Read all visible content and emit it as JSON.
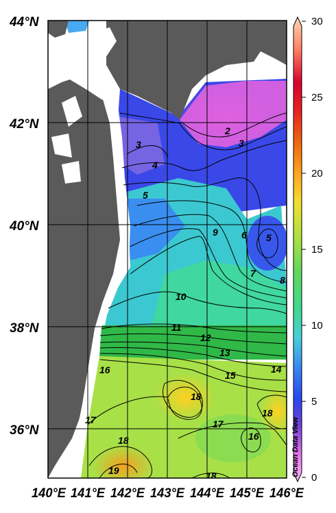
{
  "axes": {
    "lat_labels": [
      "44°N",
      "42°N",
      "40°N",
      "38°N",
      "36°N"
    ],
    "lon_labels": [
      "140°E",
      "141°E",
      "142°E",
      "143°E",
      "144°E",
      "145°E",
      "146°E"
    ]
  },
  "colorbar": {
    "min": 0,
    "max": 30,
    "tick_labels": [
      "30",
      "25",
      "20",
      "15",
      "10",
      "5",
      "0"
    ],
    "colors": [
      "#ffd3b0",
      "#ff9a50",
      "#f07000",
      "#ffce2a",
      "#c0e63a",
      "#58d46e",
      "#48d8c0",
      "#40a6f0",
      "#3050f0",
      "#6030c8",
      "#e060e0",
      "#f5a0f5"
    ]
  },
  "contour_labels": [
    "2",
    "3",
    "3",
    "4",
    "5",
    "5",
    "6",
    "7",
    "8",
    "9",
    "10",
    "11",
    "12",
    "13",
    "14",
    "15",
    "16",
    "16",
    "17",
    "17",
    "18",
    "18",
    "18",
    "18",
    "19"
  ],
  "credit": "Ocean Data View"
}
